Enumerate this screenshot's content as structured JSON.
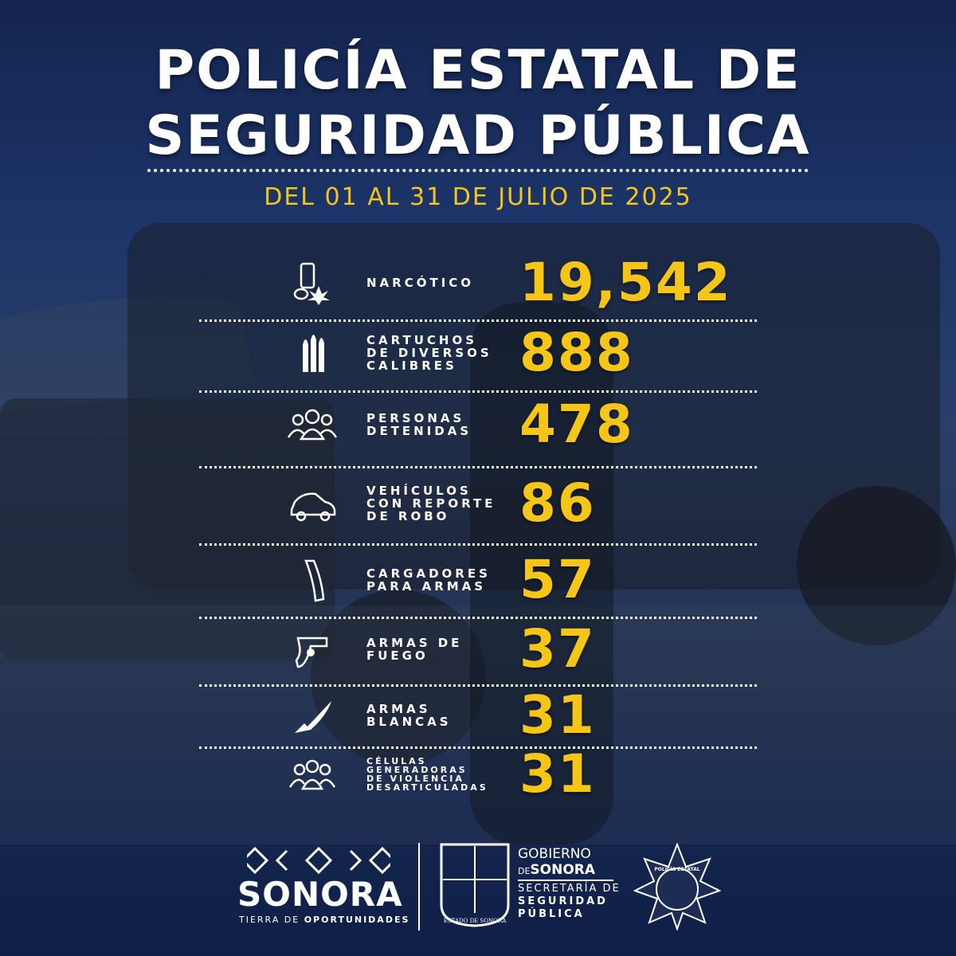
{
  "header": {
    "title": [
      "POLICÍA ESTATAL DE",
      "SEGURIDAD PÚBLICA"
    ],
    "subtitle": "DEL 01 AL 31 DE JULIO DE 2025"
  },
  "items": [
    {
      "label": [
        "NARCÓTICO"
      ],
      "value": "19,542"
    },
    {
      "label": [
        "CARTUCHOS",
        "DE DIVERSOS",
        "CALIBRES"
      ],
      "value": "888"
    },
    {
      "label": [
        "PERSONAS",
        "DETENIDAS"
      ],
      "value": "478"
    },
    {
      "label": [
        "VEHÍCULOS",
        "CON REPORTE",
        "DE ROBO"
      ],
      "value": "86"
    },
    {
      "label": [
        "CARGADORES",
        "PARA ARMAS"
      ],
      "value": "57"
    },
    {
      "label": [
        "ARMAS DE",
        "FUEGO"
      ],
      "value": "37"
    },
    {
      "label": [
        "ARMAS",
        "BLANCAS"
      ],
      "value": "31"
    },
    {
      "label": [
        "CÉLULAS",
        "GENERADORAS",
        "DE VIOLENCIA",
        "DESARTICULADAS"
      ],
      "value": "31"
    }
  ],
  "footer": {
    "brand": "SONORA",
    "tagline_prefix": "TIERRA DE",
    "tagline_bold": "OPORTUNIDADES",
    "gov_line1": "GOBIERNO",
    "gov_de": "DE",
    "gov_sonora": "SONORA",
    "secretaria": "SECRETARÍA DE",
    "seguridad": "SEGURIDAD",
    "publica": "PÚBLICA",
    "shield_text": "ESTADO DE SONORA",
    "badge_text": "POLICÍA ESTATAL"
  }
}
